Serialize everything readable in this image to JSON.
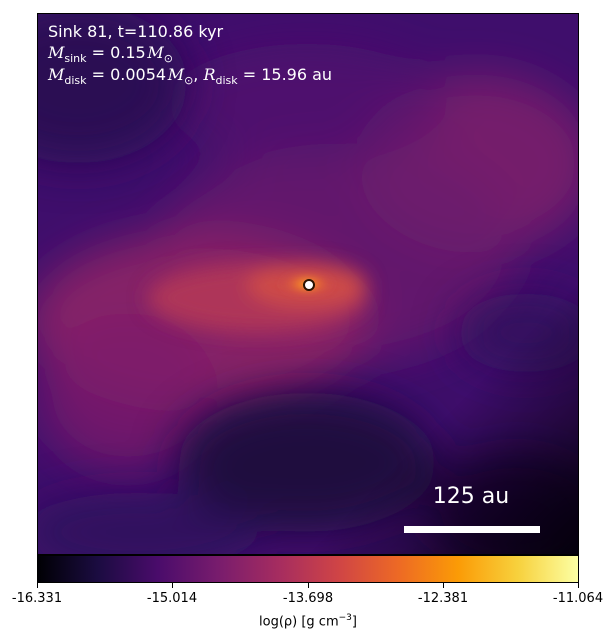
{
  "annotation": {
    "sink_line": "Sink 81, t=110.86 kyr",
    "sink_mass_symbol": "M",
    "sink_mass_sub": "sink",
    "sink_mass_value": " = 0.15",
    "disk_mass_symbol": "M",
    "disk_mass_sub": "disk",
    "disk_mass_value": " = 0.0054",
    "solar_symbol": "M",
    "solar_sub": "⊙",
    "separator": ", ",
    "disk_radius_symbol": "R",
    "disk_radius_sub": "disk",
    "disk_radius_value": " = 15.96 au"
  },
  "scale_bar": {
    "label": "125 au"
  },
  "colorbar": {
    "ticks": [
      "-16.331",
      "-15.014",
      "-13.698",
      "-12.381",
      "-11.064"
    ],
    "label_prefix": "log(ρ) [g cm",
    "label_exp": "−3",
    "label_suffix": "]",
    "colormap": "inferno",
    "stops": [
      "#000004",
      "#1b0c41",
      "#4a0c6b",
      "#781c6d",
      "#a52c60",
      "#cf4446",
      "#ed6925",
      "#fb9b06",
      "#f7d13d",
      "#fcffa4"
    ]
  },
  "image": {
    "background": "#3e0d6b",
    "sink_marker_fill": "#ffffff"
  }
}
